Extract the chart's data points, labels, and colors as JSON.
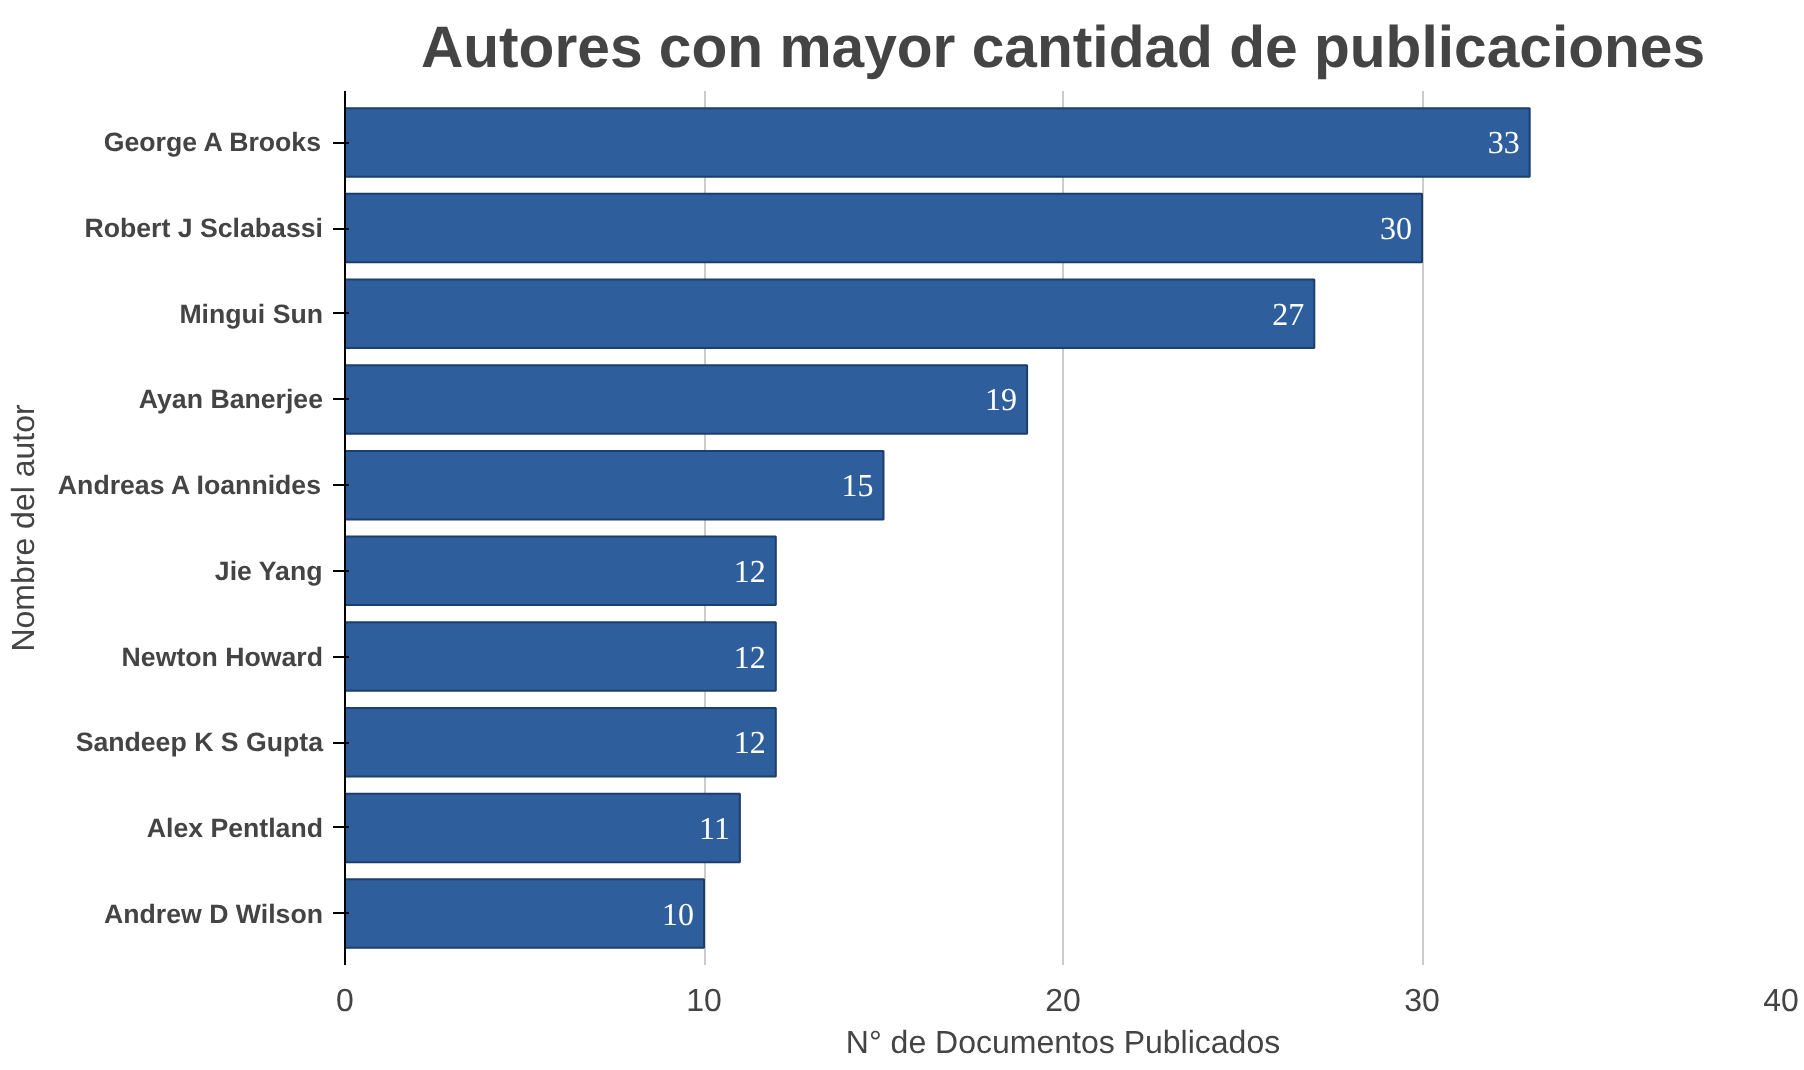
{
  "chart_data": {
    "type": "bar",
    "orientation": "horizontal",
    "title": "Autores con mayor cantidad de publicaciones",
    "xlabel": "N° de Documentos Publicados",
    "ylabel": "Nombre del autor",
    "categories": [
      "George A Brooks",
      "Robert J Sclabassi",
      "Mingui Sun",
      "Ayan Banerjee",
      "Andreas A Ioannides",
      "Jie Yang",
      "Newton Howard",
      "Sandeep K S Gupta",
      "Alex Pentland",
      "Andrew D Wilson"
    ],
    "values": [
      33,
      30,
      27,
      19,
      15,
      12,
      12,
      12,
      11,
      10
    ],
    "color": "#2e5e9c",
    "xlim": [
      0,
      40
    ],
    "xticks": [
      0,
      10,
      20,
      30,
      40
    ],
    "grid": "x",
    "data_labels": true
  }
}
